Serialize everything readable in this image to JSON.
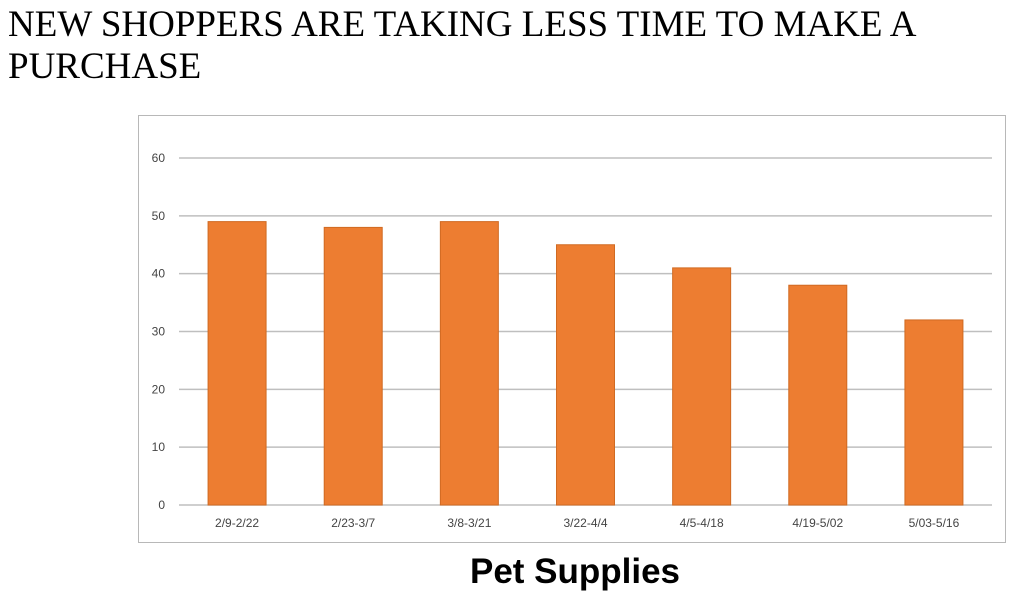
{
  "headline": "NEW SHOPPERS ARE TAKING LESS TIME TO MAKE A PURCHASE",
  "caption": "Pet Supplies",
  "colors": {
    "bar": "#ED7D31",
    "grid": "#BFBFBF",
    "axis_text": "#444444",
    "frame": "#B8B8B8"
  },
  "chart_data": {
    "type": "bar",
    "title": "",
    "xlabel": "",
    "ylabel": "",
    "categories": [
      "2/9-2/22",
      "2/23-3/7",
      "3/8-3/21",
      "3/22-4/4",
      "4/5-4/18",
      "4/19-5/02",
      "5/03-5/16"
    ],
    "values": [
      49,
      48,
      49,
      45,
      41,
      38,
      32
    ],
    "ylim": [
      0,
      60
    ],
    "yticks": [
      0,
      10,
      20,
      30,
      40,
      50,
      60
    ],
    "grid": true,
    "legend": "none"
  }
}
